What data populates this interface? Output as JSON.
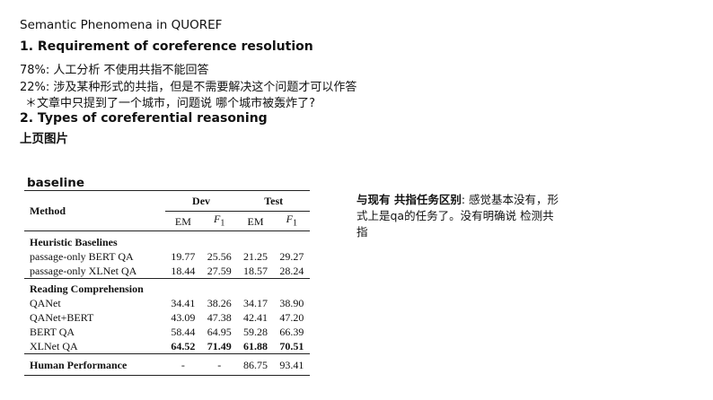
{
  "slide": {
    "title": "Semantic Phenomena in QUOREF",
    "heading1": "1. Requirement of coreference resolution",
    "line1": "78%: 人工分析 不使用共指不能回答",
    "line2": "22%: 涉及某种形式的共指，但是不需要解决这个问题才可以作答",
    "line3": "＊文章中只提到了一个城市，问题说  哪个城市被轰炸了?",
    "heading2": "2. Types of coreferential reasoning",
    "heading3": "上页图片",
    "baseline_label": "baseline",
    "note_bold": "与现有 共指任务区别",
    "note_rest": ": 感觉基本没有，形式上是qa的任务了。没有明确说  检测共指"
  },
  "table": {
    "col_method": "Method",
    "col_dev": "Dev",
    "col_test": "Test",
    "em": "EM",
    "f1": "F",
    "f1_sub": "1",
    "sections": [
      {
        "name": "Heuristic Baselines",
        "rows": [
          {
            "method": "passage-only BERT QA",
            "dev_em": "19.77",
            "dev_f1": "25.56",
            "test_em": "21.25",
            "test_f1": "29.27"
          },
          {
            "method": "passage-only XLNet QA",
            "dev_em": "18.44",
            "dev_f1": "27.59",
            "test_em": "18.57",
            "test_f1": "28.24"
          }
        ]
      },
      {
        "name": "Reading Comprehension",
        "rows": [
          {
            "method": "QANet",
            "dev_em": "34.41",
            "dev_f1": "38.26",
            "test_em": "34.17",
            "test_f1": "38.90"
          },
          {
            "method": "QANet+BERT",
            "dev_em": "43.09",
            "dev_f1": "47.38",
            "test_em": "42.41",
            "test_f1": "47.20"
          },
          {
            "method": "BERT QA",
            "dev_em": "58.44",
            "dev_f1": "64.95",
            "test_em": "59.28",
            "test_f1": "66.39"
          },
          {
            "method": "XLNet QA",
            "dev_em": "64.52",
            "dev_f1": "71.49",
            "test_em": "61.88",
            "test_f1": "70.51"
          }
        ]
      }
    ],
    "human": {
      "method": "Human Performance",
      "dev_em": "-",
      "dev_f1": "-",
      "test_em": "86.75",
      "test_f1": "93.41"
    }
  }
}
